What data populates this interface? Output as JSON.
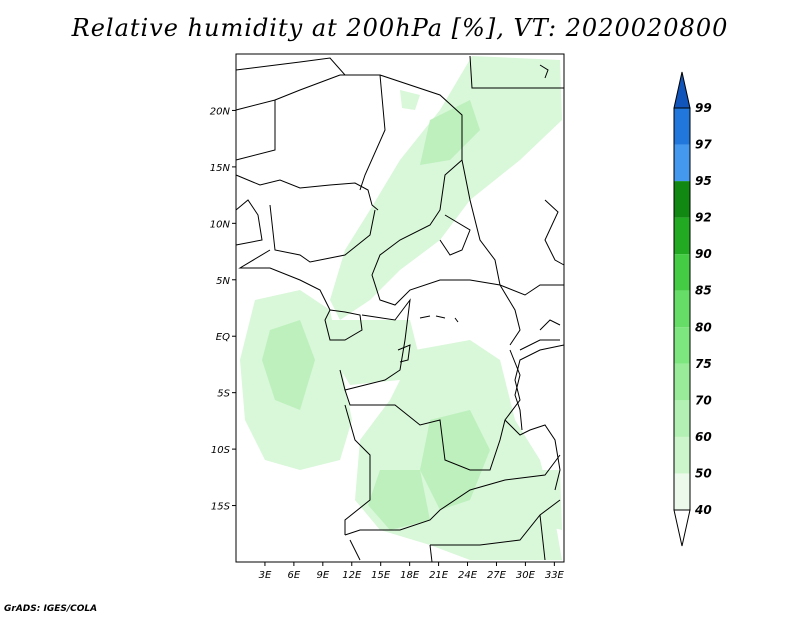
{
  "title": "Relative humidity at 200hPa [%], VT: 2020020800",
  "credit": "GrADS: IGES/COLA",
  "map": {
    "lon_range": [
      0,
      34
    ],
    "lat_range": [
      -20,
      25
    ],
    "x_ticks": [
      {
        "value": 3,
        "label": "3E"
      },
      {
        "value": 6,
        "label": "6E"
      },
      {
        "value": 9,
        "label": "9E"
      },
      {
        "value": 12,
        "label": "12E"
      },
      {
        "value": 15,
        "label": "15E"
      },
      {
        "value": 18,
        "label": "18E"
      },
      {
        "value": 21,
        "label": "21E"
      },
      {
        "value": 24,
        "label": "24E"
      },
      {
        "value": 27,
        "label": "27E"
      },
      {
        "value": 30,
        "label": "30E"
      },
      {
        "value": 33,
        "label": "33E"
      }
    ],
    "y_ticks": [
      {
        "value": 20,
        "label": "20N"
      },
      {
        "value": 15,
        "label": "15N"
      },
      {
        "value": 10,
        "label": "10N"
      },
      {
        "value": 5,
        "label": "5N"
      },
      {
        "value": 0,
        "label": "EQ"
      },
      {
        "value": -5,
        "label": "5S"
      },
      {
        "value": -10,
        "label": "10S"
      },
      {
        "value": -15,
        "label": "15S"
      }
    ]
  },
  "colorbar": {
    "levels": [
      "40",
      "50",
      "60",
      "70",
      "75",
      "80",
      "85",
      "90",
      "92",
      "95",
      "97",
      "99"
    ],
    "colors": [
      "#ebfaeb",
      "#ccf5cc",
      "#b3f0b3",
      "#99eb99",
      "#7ee67e",
      "#66dd66",
      "#44cc44",
      "#22aa22",
      "#118811",
      "#4499ee",
      "#2277dd",
      "#1155bb"
    ]
  },
  "colors": {
    "land_border": "#000000",
    "humid_light": "#d9f7d9",
    "humid_mid": "#bdf0bd"
  }
}
